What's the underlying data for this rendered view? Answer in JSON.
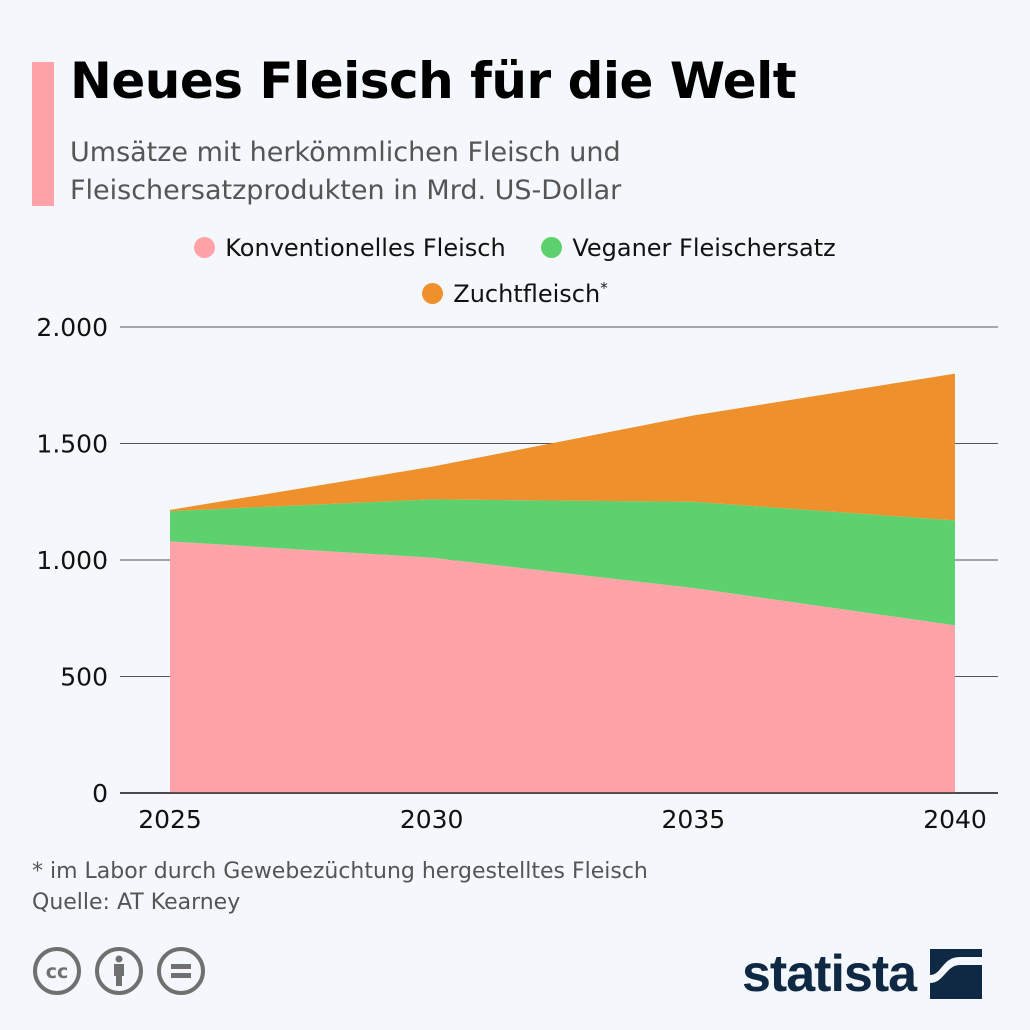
{
  "header": {
    "title": "Neues Fleisch für die Welt",
    "subtitle": "Umsätze mit herkömmlichen Fleisch und Fleischersatzprodukten in Mrd. US-Dollar"
  },
  "legend": {
    "items": [
      {
        "label": "Konventionelles Fleisch",
        "color": "#ffa3a9"
      },
      {
        "label": "Veganer Fleischersatz",
        "color": "#5dd16d"
      },
      {
        "label": "Zuchtfleisch",
        "color": "#ee902c",
        "sup": "*"
      }
    ]
  },
  "chart_data": {
    "type": "area",
    "stacked": true,
    "title": "Neues Fleisch für die Welt",
    "subtitle": "Umsätze mit herkömmlichen Fleisch und Fleischersatzprodukten in Mrd. US-Dollar",
    "x": [
      "2025",
      "2030",
      "2035",
      "2040"
    ],
    "series": [
      {
        "name": "Konventionelles Fleisch",
        "color": "#ffa3a9",
        "values": [
          1080,
          1010,
          880,
          720
        ]
      },
      {
        "name": "Veganer Fleischersatz",
        "color": "#5dd16d",
        "values": [
          130,
          250,
          370,
          450
        ]
      },
      {
        "name": "Zuchtfleisch*",
        "color": "#ee902c",
        "values": [
          5,
          140,
          370,
          630
        ]
      }
    ],
    "ylim": [
      0,
      2000
    ],
    "yticks": [
      0,
      500,
      1000,
      1500,
      2000
    ],
    "ytick_labels": [
      "0",
      "500",
      "1.000",
      "1.500",
      "2.000"
    ],
    "xlabel": "",
    "ylabel": "",
    "grid": true,
    "legend_position": "top-center"
  },
  "footer": {
    "footnote": "* im Labor durch Gewebezüchtung hergestelltes Fleisch",
    "source": "Quelle: AT Kearney",
    "license_icons": [
      "cc-icon",
      "attribution-icon",
      "no-derivatives-icon"
    ],
    "logo_text": "statista"
  }
}
